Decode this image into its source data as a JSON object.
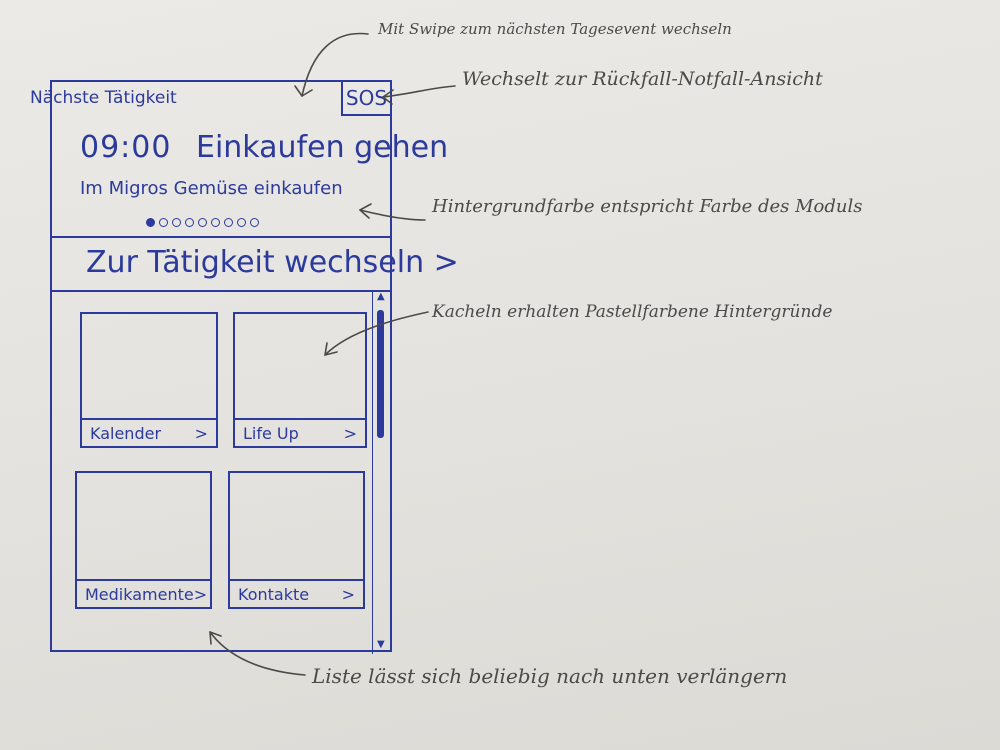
{
  "screen": {
    "next_activity_label": "Nächste Tätigkeit",
    "sos_label": "SOS",
    "event": {
      "time": "09:00",
      "title": "Einkaufen gehen",
      "description": "Im Migros Gemüse einkaufen"
    },
    "pager": {
      "total": 9,
      "active_index": 0
    },
    "switch_activity_label": "Zur Tätigkeit wechseln >",
    "tiles": [
      {
        "label": "Kalender",
        "chevron": ">"
      },
      {
        "label": "Life Up",
        "chevron": ">"
      },
      {
        "label": "Medikamente",
        "chevron": ">"
      },
      {
        "label": "Kontakte",
        "chevron": ">"
      }
    ]
  },
  "annotations": {
    "swipe": "Mit Swipe zum nächsten Tagesevent wechseln",
    "sos": "Wechselt zur Rückfall-Notfall-Ansicht",
    "background": "Hintergrundfarbe entspricht Farbe des Moduls",
    "tiles": "Kacheln erhalten Pastellfarbene Hintergründe",
    "list": "Liste lässt sich beliebig nach unten verlängern"
  },
  "colors": {
    "ink": "#2c3a9c",
    "pencil": "#4a4a48",
    "paper": "#e6e4e0"
  }
}
